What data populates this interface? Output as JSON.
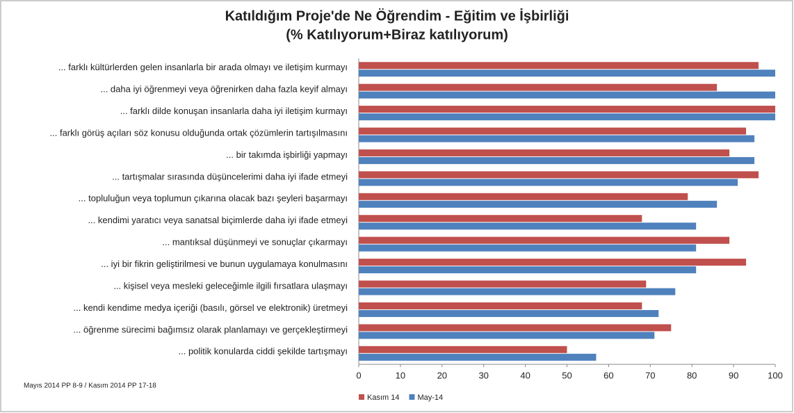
{
  "chart_data": {
    "type": "bar",
    "orientation": "horizontal",
    "title": "Katıldığım Proje'de Ne Öğrendim - Eğitim ve İşbirliği",
    "subtitle": "(% Katılıyorum+Biraz katılıyorum)",
    "note": "Mayıs 2014 PP 8-9 / Kasım 2014 PP 17-18",
    "categories": [
      "... farklı kültürlerden gelen insanlarla bir arada olmayı ve iletişim kurmayı",
      "... daha iyi öğrenmeyi veya öğrenirken daha fazla keyif almayı",
      "... farklı dilde konuşan insanlarla daha iyi iletişim kurmayı",
      "... farklı görüş açıları söz konusu olduğunda ortak çözümlerin tartışılmasını",
      "... bir takımda işbirliği yapmayı",
      "... tartışmalar sırasında düşüncelerimi daha iyi ifade etmeyi",
      "... topluluğun veya toplumun çıkarına olacak bazı şeyleri başarmayı",
      "... kendimi yaratıcı veya sanatsal biçimlerde daha iyi ifade etmeyi",
      "... mantıksal düşünmeyi ve sonuçlar çıkarmayı",
      "... iyi bir fikrin geliştirilmesi ve bunun uygulamaya konulmasını",
      "... kişisel veya mesleki geleceğimle ilgili fırsatlara ulaşmayı",
      "... kendi kendime medya içeriği (basılı, görsel ve elektronik) üretmeyi",
      "... öğrenme sürecimi bağımsız olarak planlamayı ve gerçekleştirmeyi",
      "... politik konularda ciddi şekilde tartışmayı"
    ],
    "series": [
      {
        "name": "Kasım 14",
        "color": "#c0504d",
        "values": [
          96,
          86,
          100,
          93,
          89,
          96,
          79,
          68,
          89,
          93,
          69,
          68,
          75,
          50
        ]
      },
      {
        "name": "May-14",
        "color": "#4f81bd",
        "values": [
          100,
          100,
          100,
          95,
          95,
          91,
          86,
          81,
          81,
          81,
          76,
          72,
          71,
          57
        ]
      }
    ],
    "xlim": [
      0,
      100
    ],
    "xticks": [
      0,
      10,
      20,
      30,
      40,
      50,
      60,
      70,
      80,
      90,
      100
    ],
    "grid": false,
    "legend": "bottom"
  }
}
